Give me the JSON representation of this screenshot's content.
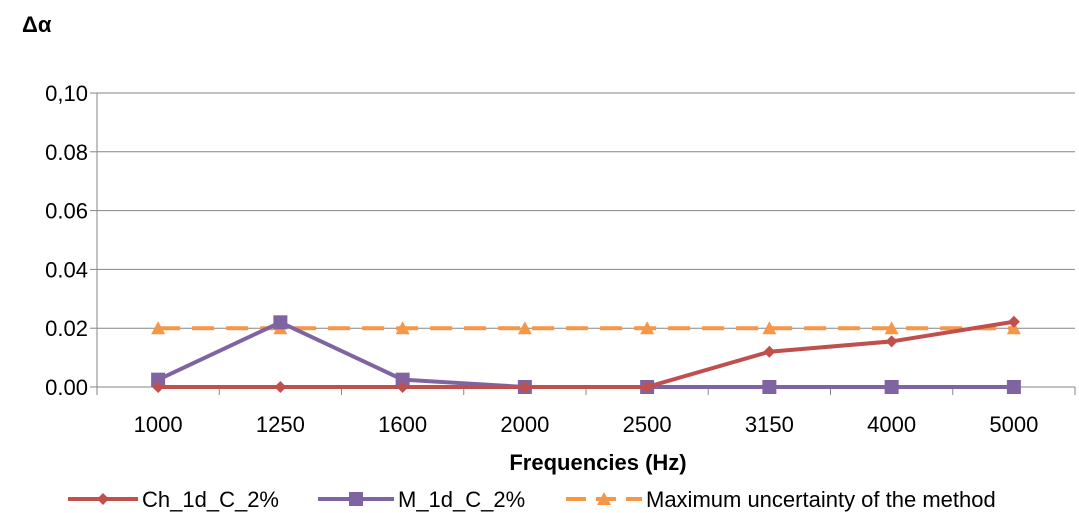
{
  "chart_data": {
    "type": "line",
    "categories": [
      "1000",
      "1250",
      "1600",
      "2000",
      "2500",
      "3150",
      "4000",
      "5000"
    ],
    "series": [
      {
        "name": "Ch_1d_C_2%",
        "values": [
          0.0,
          0.0,
          0.0,
          0.0,
          0.0,
          0.012,
          0.0155,
          0.0222
        ],
        "color": "#c0504d",
        "marker": "diamond",
        "dash": false
      },
      {
        "name": "M_1d_C_2%",
        "values": [
          0.0025,
          0.022,
          0.0025,
          0.0,
          0.0,
          0.0,
          0.0,
          0.0
        ],
        "color": "#8064a2",
        "marker": "square",
        "dash": false
      },
      {
        "name": "Maximum uncertainty of the method",
        "values": [
          0.02,
          0.02,
          0.02,
          0.02,
          0.02,
          0.02,
          0.02,
          0.02
        ],
        "color": "#f79646",
        "marker": "triangle",
        "dash": true
      }
    ],
    "ylabel": "Δα",
    "xlabel": "Frequencies (Hz)",
    "ylim": [
      0,
      0.1
    ],
    "yticks": [
      "0,10",
      "0.08",
      "0.06",
      "0.04",
      "0.02",
      "0.00"
    ],
    "ytick_values": [
      0.1,
      0.08,
      0.06,
      0.04,
      0.02,
      0.0
    ],
    "grid": true,
    "legend_position": "bottom"
  }
}
